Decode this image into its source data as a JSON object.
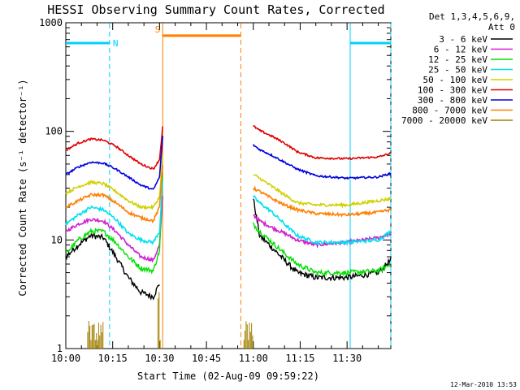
{
  "chart_data": {
    "type": "line",
    "title": "HESSI Observing Summary Count Rates, Corrected",
    "xlabel": "Start Time (02-Aug-09 09:59:22)",
    "ylabel": "Corrected Count Rate (s⁻¹ detector⁻¹)",
    "yscale": "log",
    "xlim_min": [
      0,
      104
    ],
    "ylim": [
      1,
      1000
    ],
    "x_ticks": [
      {
        "min": 0,
        "label": "10:00"
      },
      {
        "min": 15,
        "label": "10:15"
      },
      {
        "min": 30,
        "label": "10:30"
      },
      {
        "min": 45,
        "label": "10:45"
      },
      {
        "min": 60,
        "label": "11:00"
      },
      {
        "min": 75,
        "label": "11:15"
      },
      {
        "min": 90,
        "label": "11:30"
      }
    ],
    "y_ticks": [
      {
        "value": 1,
        "label": "1"
      },
      {
        "value": 10,
        "label": "10"
      },
      {
        "value": 100,
        "label": "100"
      },
      {
        "value": 1000,
        "label": "1000"
      }
    ],
    "legend": {
      "title_line1": "Det 1,3,4,5,6,9,",
      "title_line2": "Att 0",
      "placement": "right"
    },
    "flags": [
      {
        "label": "N",
        "color": "#00d0ff",
        "segments": [
          [
            0,
            14
          ],
          [
            91,
            104
          ]
        ],
        "level": 650
      },
      {
        "label": "S",
        "color": "#ff7f00",
        "segments": [
          [
            31,
            56
          ]
        ],
        "level": 760
      }
    ],
    "vlines": [
      {
        "min": 14,
        "color": "#00d0ff",
        "style": "dashed"
      },
      {
        "min": 91,
        "color": "#00d0ff",
        "style": "solid"
      },
      {
        "min": 104,
        "color": "#00d0ff",
        "style": "dashed"
      },
      {
        "min": 31,
        "color": "#ff7f00",
        "style": "solid"
      },
      {
        "min": 56,
        "color": "#ff7f00",
        "style": "dashed"
      }
    ],
    "series": [
      {
        "name": "3 - 6 keV",
        "color": "#000000",
        "noise": 0.06,
        "seg1": [
          [
            0,
            7
          ],
          [
            4,
            9
          ],
          [
            8,
            11
          ],
          [
            12,
            10.5
          ],
          [
            16,
            7
          ],
          [
            20,
            4.5
          ],
          [
            24,
            3.3
          ],
          [
            28,
            3.0
          ],
          [
            30,
            4
          ]
        ],
        "seg2": [
          [
            60,
            24
          ],
          [
            62,
            11
          ],
          [
            66,
            8.5
          ],
          [
            70,
            6.5
          ],
          [
            74,
            5
          ],
          [
            80,
            4.5
          ],
          [
            90,
            4.5
          ],
          [
            100,
            5
          ],
          [
            104,
            6.5
          ]
        ]
      },
      {
        "name": "6 - 12 keV",
        "color": "#d020d0",
        "noise": 0.035,
        "seg1": [
          [
            0,
            12
          ],
          [
            4,
            14
          ],
          [
            8,
            15.5
          ],
          [
            12,
            15
          ],
          [
            16,
            12
          ],
          [
            20,
            9
          ],
          [
            24,
            7
          ],
          [
            28,
            6.5
          ],
          [
            30,
            9
          ],
          [
            31,
            25
          ]
        ],
        "seg2": [
          [
            60,
            17
          ],
          [
            62,
            15
          ],
          [
            66,
            13
          ],
          [
            70,
            11.5
          ],
          [
            74,
            10
          ],
          [
            80,
            9
          ],
          [
            90,
            9.5
          ],
          [
            100,
            10.5
          ],
          [
            104,
            11.5
          ]
        ]
      },
      {
        "name": "12 - 25 keV",
        "color": "#00e000",
        "noise": 0.05,
        "seg1": [
          [
            0,
            7.5
          ],
          [
            4,
            10
          ],
          [
            8,
            12
          ],
          [
            12,
            12
          ],
          [
            16,
            9.5
          ],
          [
            20,
            7
          ],
          [
            24,
            5.5
          ],
          [
            28,
            5.2
          ],
          [
            30,
            8
          ],
          [
            31,
            40
          ]
        ],
        "seg2": [
          [
            60,
            14
          ],
          [
            62,
            12
          ],
          [
            66,
            9.5
          ],
          [
            70,
            7.5
          ],
          [
            74,
            6
          ],
          [
            80,
            5
          ],
          [
            90,
            5
          ],
          [
            100,
            5.2
          ],
          [
            104,
            6
          ]
        ]
      },
      {
        "name": "25 - 50 keV",
        "color": "#00e0f0",
        "noise": 0.035,
        "seg1": [
          [
            0,
            14
          ],
          [
            4,
            17
          ],
          [
            8,
            20
          ],
          [
            12,
            19
          ],
          [
            16,
            15.5
          ],
          [
            20,
            11.5
          ],
          [
            24,
            10
          ],
          [
            28,
            9.5
          ],
          [
            30,
            12
          ],
          [
            31,
            35
          ]
        ],
        "seg2": [
          [
            60,
            25
          ],
          [
            62,
            22
          ],
          [
            66,
            18
          ],
          [
            70,
            14
          ],
          [
            74,
            11
          ],
          [
            80,
            9.5
          ],
          [
            90,
            9.5
          ],
          [
            100,
            10
          ],
          [
            104,
            12
          ]
        ]
      },
      {
        "name": "50 - 100 keV",
        "color": "#d0d000",
        "noise": 0.03,
        "seg1": [
          [
            0,
            27
          ],
          [
            4,
            31
          ],
          [
            8,
            34
          ],
          [
            12,
            33
          ],
          [
            16,
            28
          ],
          [
            20,
            23
          ],
          [
            24,
            20
          ],
          [
            28,
            20
          ],
          [
            30,
            25
          ],
          [
            31,
            60
          ]
        ],
        "seg2": [
          [
            60,
            40
          ],
          [
            62,
            37
          ],
          [
            66,
            31
          ],
          [
            70,
            26
          ],
          [
            74,
            22
          ],
          [
            80,
            21
          ],
          [
            90,
            21
          ],
          [
            100,
            23
          ],
          [
            104,
            24
          ]
        ]
      },
      {
        "name": "100 - 300 keV",
        "color": "#e00000",
        "noise": 0.02,
        "seg1": [
          [
            0,
            67
          ],
          [
            4,
            78
          ],
          [
            8,
            85
          ],
          [
            12,
            83
          ],
          [
            16,
            73
          ],
          [
            20,
            60
          ],
          [
            24,
            50
          ],
          [
            28,
            45
          ],
          [
            30,
            55
          ],
          [
            31,
            110
          ]
        ],
        "seg2": [
          [
            60,
            112
          ],
          [
            62,
            102
          ],
          [
            66,
            90
          ],
          [
            70,
            78
          ],
          [
            74,
            65
          ],
          [
            80,
            57
          ],
          [
            90,
            56
          ],
          [
            100,
            58
          ],
          [
            104,
            63
          ]
        ]
      },
      {
        "name": "300 - 800 keV",
        "color": "#0000e0",
        "noise": 0.02,
        "seg1": [
          [
            0,
            40
          ],
          [
            4,
            47
          ],
          [
            8,
            52
          ],
          [
            12,
            51
          ],
          [
            16,
            45
          ],
          [
            20,
            38
          ],
          [
            24,
            32
          ],
          [
            28,
            29
          ],
          [
            30,
            38
          ],
          [
            31,
            90
          ]
        ],
        "seg2": [
          [
            60,
            75
          ],
          [
            62,
            68
          ],
          [
            66,
            60
          ],
          [
            70,
            52
          ],
          [
            74,
            45
          ],
          [
            80,
            39
          ],
          [
            90,
            37
          ],
          [
            100,
            38
          ],
          [
            104,
            41
          ]
        ]
      },
      {
        "name": "800 - 7000 keV",
        "color": "#ff7f00",
        "noise": 0.03,
        "seg1": [
          [
            0,
            20
          ],
          [
            4,
            23
          ],
          [
            8,
            26
          ],
          [
            12,
            26
          ],
          [
            16,
            22
          ],
          [
            20,
            18
          ],
          [
            24,
            16
          ],
          [
            28,
            15
          ],
          [
            30,
            20
          ],
          [
            31,
            50
          ]
        ],
        "seg2": [
          [
            60,
            30
          ],
          [
            62,
            28
          ],
          [
            66,
            24
          ],
          [
            70,
            21
          ],
          [
            74,
            19
          ],
          [
            80,
            17.5
          ],
          [
            90,
            17
          ],
          [
            100,
            18
          ],
          [
            104,
            19
          ]
        ]
      },
      {
        "name": "7000 - 20000 keV",
        "color": "#a08000",
        "noise": 0,
        "seg1": [],
        "seg2": []
      }
    ],
    "spikes": [
      {
        "color": "#a08000",
        "x_start": 7,
        "x_end": 12,
        "top": 1.8
      },
      {
        "color": "#a08000",
        "x_start": 29.5,
        "x_end": 30.5,
        "top": 3.5
      },
      {
        "color": "#a08000",
        "x_start": 57,
        "x_end": 60,
        "top": 1.8
      }
    ]
  },
  "footer": {
    "timestamp": "12-Mar-2010 13:53"
  }
}
